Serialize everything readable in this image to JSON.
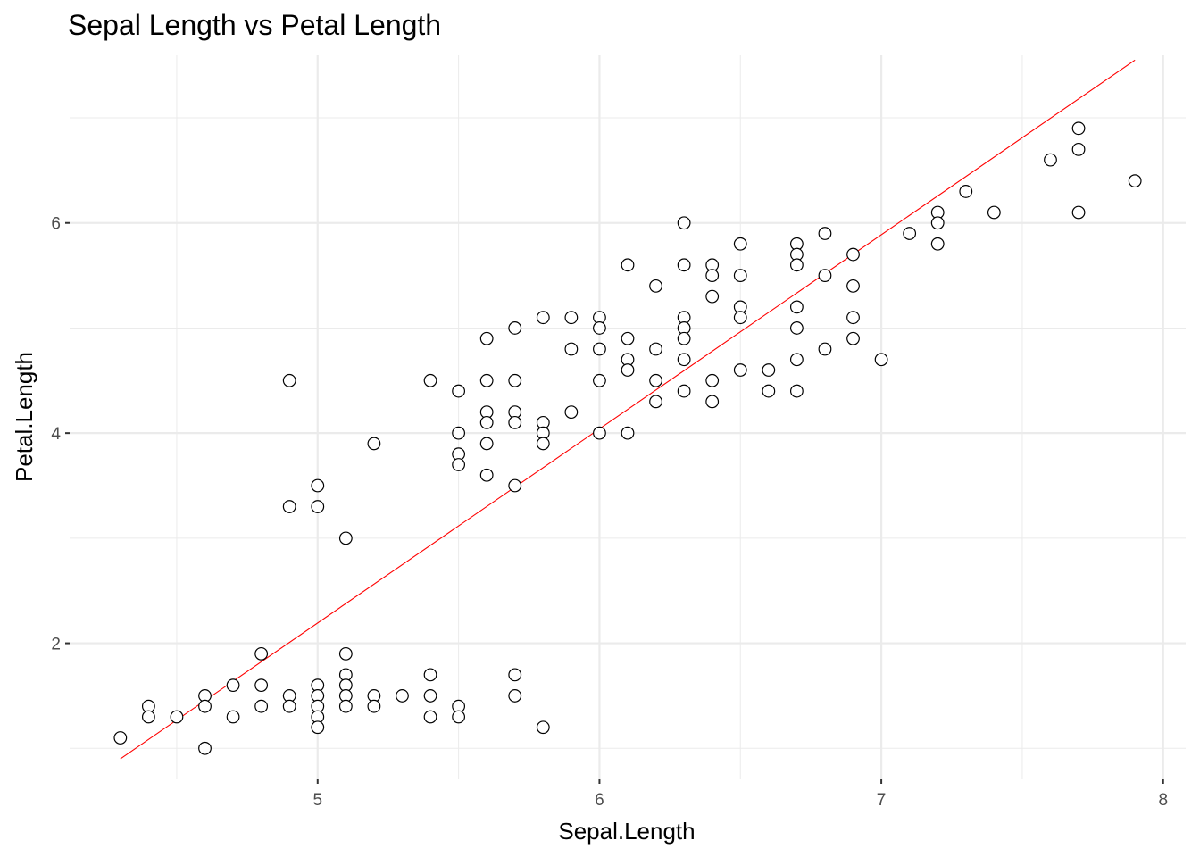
{
  "chart_data": {
    "type": "scatter",
    "title": "Sepal Length vs Petal Length",
    "xlabel": "Sepal.Length",
    "ylabel": "Petal.Length",
    "xlim": [
      4.12,
      8.08
    ],
    "ylim": [
      0.705,
      7.595
    ],
    "xticks": [
      5,
      6,
      7,
      8
    ],
    "xtick_labels": [
      "5",
      "6",
      "7",
      "8"
    ],
    "yticks": [
      2,
      4,
      6
    ],
    "ytick_labels": [
      "2",
      "4",
      "6"
    ],
    "x_minor": [
      4.5,
      5.5,
      6.5,
      7.5
    ],
    "y_minor": [
      1,
      3,
      5,
      7
    ],
    "grid": true,
    "point_style": "hollow circle",
    "colors": {
      "points_stroke": "#000000",
      "points_fill": "#ffffff",
      "fit_line": "#ff0000",
      "grid": "#ebebeb"
    },
    "fit_line": {
      "x": [
        4.3,
        7.9
      ],
      "y": [
        0.9,
        7.55
      ]
    },
    "points": [
      [
        4.3,
        1.1
      ],
      [
        4.4,
        1.4
      ],
      [
        4.4,
        1.3
      ],
      [
        4.5,
        1.3
      ],
      [
        4.6,
        1.5
      ],
      [
        4.6,
        1.4
      ],
      [
        4.6,
        1.0
      ],
      [
        4.7,
        1.6
      ],
      [
        4.7,
        1.3
      ],
      [
        4.8,
        1.9
      ],
      [
        4.8,
        1.6
      ],
      [
        4.8,
        1.4
      ],
      [
        4.9,
        1.5
      ],
      [
        4.9,
        1.4
      ],
      [
        4.9,
        4.5
      ],
      [
        4.9,
        3.3
      ],
      [
        5.0,
        1.6
      ],
      [
        5.0,
        1.5
      ],
      [
        5.0,
        1.4
      ],
      [
        5.0,
        1.3
      ],
      [
        5.0,
        1.2
      ],
      [
        5.0,
        3.5
      ],
      [
        5.0,
        3.3
      ],
      [
        5.1,
        1.9
      ],
      [
        5.1,
        1.7
      ],
      [
        5.1,
        1.6
      ],
      [
        5.1,
        1.5
      ],
      [
        5.1,
        1.4
      ],
      [
        5.1,
        3.0
      ],
      [
        5.2,
        1.5
      ],
      [
        5.2,
        1.4
      ],
      [
        5.2,
        3.9
      ],
      [
        5.3,
        1.5
      ],
      [
        5.4,
        1.7
      ],
      [
        5.4,
        1.5
      ],
      [
        5.4,
        1.3
      ],
      [
        5.4,
        4.5
      ],
      [
        5.5,
        1.4
      ],
      [
        5.5,
        1.3
      ],
      [
        5.5,
        4.4
      ],
      [
        5.5,
        4.0
      ],
      [
        5.5,
        3.8
      ],
      [
        5.5,
        3.7
      ],
      [
        5.6,
        4.9
      ],
      [
        5.6,
        4.5
      ],
      [
        5.6,
        4.2
      ],
      [
        5.6,
        4.1
      ],
      [
        5.6,
        3.9
      ],
      [
        5.6,
        3.6
      ],
      [
        5.7,
        1.7
      ],
      [
        5.7,
        1.5
      ],
      [
        5.7,
        5.0
      ],
      [
        5.7,
        4.5
      ],
      [
        5.7,
        4.2
      ],
      [
        5.7,
        4.1
      ],
      [
        5.7,
        3.5
      ],
      [
        5.8,
        1.2
      ],
      [
        5.8,
        5.1
      ],
      [
        5.8,
        4.1
      ],
      [
        5.8,
        4.0
      ],
      [
        5.8,
        3.9
      ],
      [
        5.9,
        5.1
      ],
      [
        5.9,
        4.8
      ],
      [
        5.9,
        4.2
      ],
      [
        6.0,
        5.1
      ],
      [
        6.0,
        5.0
      ],
      [
        6.0,
        4.8
      ],
      [
        6.0,
        4.5
      ],
      [
        6.0,
        4.0
      ],
      [
        6.1,
        5.6
      ],
      [
        6.1,
        4.9
      ],
      [
        6.1,
        4.7
      ],
      [
        6.1,
        4.6
      ],
      [
        6.1,
        4.0
      ],
      [
        6.2,
        5.4
      ],
      [
        6.2,
        4.8
      ],
      [
        6.2,
        4.5
      ],
      [
        6.2,
        4.3
      ],
      [
        6.3,
        6.0
      ],
      [
        6.3,
        5.6
      ],
      [
        6.3,
        5.1
      ],
      [
        6.3,
        5.0
      ],
      [
        6.3,
        4.9
      ],
      [
        6.3,
        4.7
      ],
      [
        6.3,
        4.4
      ],
      [
        6.4,
        5.6
      ],
      [
        6.4,
        5.5
      ],
      [
        6.4,
        5.3
      ],
      [
        6.4,
        4.5
      ],
      [
        6.4,
        4.3
      ],
      [
        6.5,
        5.8
      ],
      [
        6.5,
        5.5
      ],
      [
        6.5,
        5.2
      ],
      [
        6.5,
        5.1
      ],
      [
        6.5,
        4.6
      ],
      [
        6.6,
        4.6
      ],
      [
        6.6,
        4.4
      ],
      [
        6.7,
        5.8
      ],
      [
        6.7,
        5.7
      ],
      [
        6.7,
        5.6
      ],
      [
        6.7,
        5.2
      ],
      [
        6.7,
        5.0
      ],
      [
        6.7,
        4.7
      ],
      [
        6.7,
        4.4
      ],
      [
        6.8,
        5.9
      ],
      [
        6.8,
        5.5
      ],
      [
        6.8,
        4.8
      ],
      [
        6.9,
        5.7
      ],
      [
        6.9,
        5.4
      ],
      [
        6.9,
        5.1
      ],
      [
        6.9,
        4.9
      ],
      [
        7.0,
        4.7
      ],
      [
        7.1,
        5.9
      ],
      [
        7.2,
        6.1
      ],
      [
        7.2,
        6.0
      ],
      [
        7.2,
        5.8
      ],
      [
        7.3,
        6.3
      ],
      [
        7.4,
        6.1
      ],
      [
        7.6,
        6.6
      ],
      [
        7.7,
        6.9
      ],
      [
        7.7,
        6.7
      ],
      [
        7.7,
        6.1
      ],
      [
        7.9,
        6.4
      ]
    ]
  }
}
